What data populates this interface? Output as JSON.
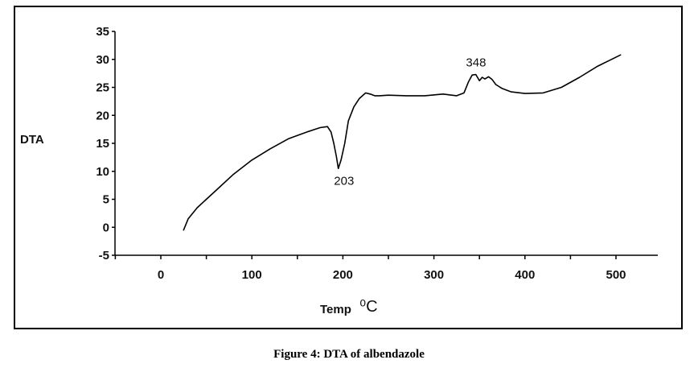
{
  "chart_data": {
    "type": "line",
    "title": "",
    "ylabel": "DTA",
    "xlabel_main": "Temp",
    "xlabel_unit": "⁰C",
    "xlim": [
      -50,
      550
    ],
    "ylim": [
      -5,
      35
    ],
    "x_ticks": [
      0,
      100,
      200,
      300,
      400,
      500
    ],
    "y_ticks": [
      -5,
      0,
      5,
      10,
      15,
      20,
      25,
      30,
      35
    ],
    "grid": false,
    "series": [
      {
        "x": [
          25,
          30,
          40,
          60,
          80,
          100,
          120,
          140,
          160,
          175,
          183,
          187,
          190,
          193,
          195,
          198,
          202,
          206,
          212,
          218,
          225,
          230,
          235,
          240,
          250,
          270,
          290,
          310,
          325,
          333,
          338,
          342,
          346,
          350,
          353,
          356,
          360,
          364,
          368,
          375,
          385,
          400,
          420,
          440,
          460,
          480,
          495,
          505
        ],
        "y": [
          -0.5,
          1.5,
          3.5,
          6.5,
          9.5,
          12,
          14,
          15.8,
          17,
          17.8,
          18,
          17,
          15,
          12.5,
          10.5,
          12,
          15,
          19,
          21.5,
          23,
          24,
          23.8,
          23.5,
          23.5,
          23.6,
          23.5,
          23.5,
          23.8,
          23.5,
          24,
          26,
          27.2,
          27.3,
          26.2,
          26.8,
          26.5,
          26.9,
          26.4,
          25.5,
          24.8,
          24.2,
          23.9,
          24,
          25,
          26.8,
          28.8,
          30,
          30.8
        ]
      }
    ],
    "annotations": [
      {
        "text": "203",
        "x": 203,
        "y": 10.5,
        "position": "below"
      },
      {
        "text": "348",
        "x": 348,
        "y": 27.3,
        "position": "above"
      }
    ],
    "caption": "Figure 4: DTA of albendazole"
  }
}
